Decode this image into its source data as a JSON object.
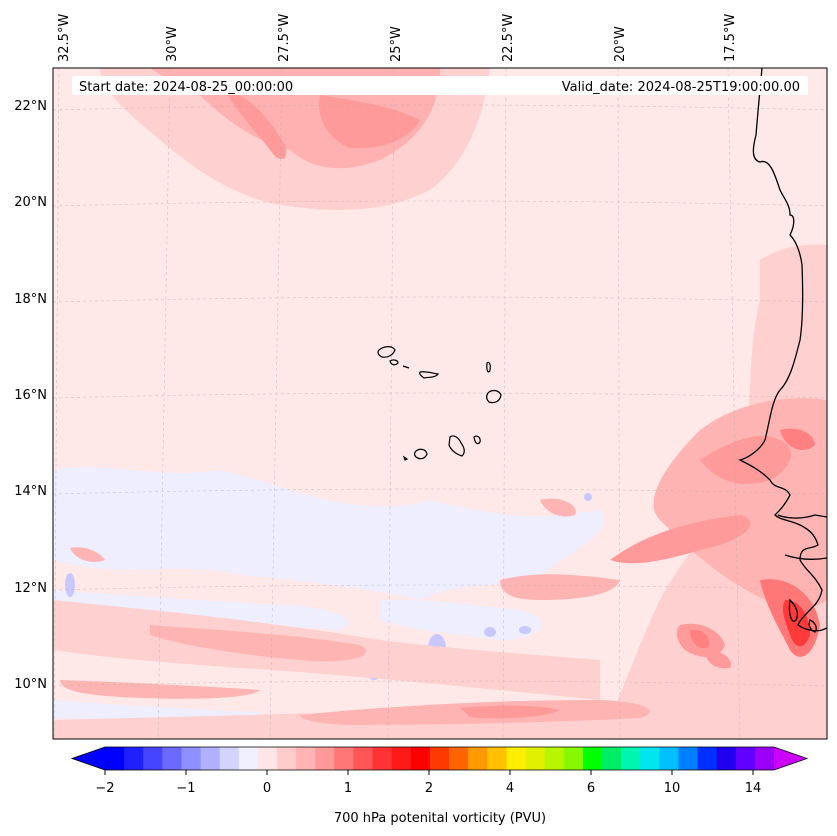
{
  "header": {
    "start_date": "Start date: 2024-08-25_00:00:00",
    "valid_date": "Valid_date: 2024-08-25T19:00:00.00"
  },
  "map": {
    "longitude_labels": [
      "32.5°W",
      "30°W",
      "27.5°W",
      "25°W",
      "22.5°W",
      "20°W",
      "17.5°W"
    ],
    "latitude_labels": [
      "22°N",
      "20°N",
      "18°N",
      "16°N",
      "14°N",
      "12°N",
      "10°N"
    ],
    "lon_range": [
      -32.7,
      -15.3
    ],
    "lat_range": [
      8.9,
      22.8
    ],
    "gridlines": true
  },
  "colorbar": {
    "label": "700 hPa potenital vorticity (PVU)",
    "tick_labels": [
      "−2",
      "−1",
      "0",
      "1",
      "2",
      "4",
      "6",
      "10",
      "14"
    ],
    "colors": [
      "#0000ff",
      "#2020ff",
      "#4545ff",
      "#6a6aff",
      "#8f8fff",
      "#b0b0ff",
      "#d3d3ff",
      "#f0f0ff",
      "#ffe6e6",
      "#ffcccc",
      "#ffb3b3",
      "#ff9999",
      "#ff7777",
      "#ff5555",
      "#ff3333",
      "#ff1a1a",
      "#ff0000",
      "#ff3a00",
      "#ff6600",
      "#ff9900",
      "#ffc000",
      "#ffee00",
      "#e0f000",
      "#b8f500",
      "#88f800",
      "#00ff00",
      "#00ee66",
      "#00f5b0",
      "#00e5ee",
      "#00bfff",
      "#0080ff",
      "#0030ff",
      "#2000ee",
      "#6000ff",
      "#9a00f5"
    ],
    "under_color": "#0000ff",
    "over_color": "#cc00ff"
  },
  "colors": {
    "background_field": "#ffe8e8",
    "coast": "#000000"
  }
}
